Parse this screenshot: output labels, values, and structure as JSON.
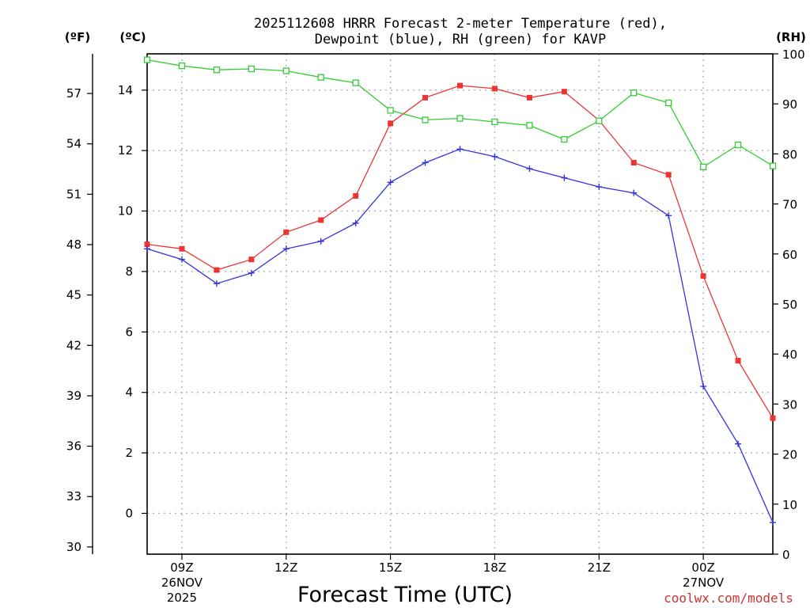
{
  "chart_data": {
    "type": "line",
    "title_line1": "2025112608 HRRR Forecast 2-meter Temperature (red),",
    "title_line2": "Dewpoint (blue), RH (green) for KAVP",
    "xlabel": "Forecast Time (UTC)",
    "credit": "coolwx.com/models",
    "units": {
      "fahrenheit": "(ºF)",
      "celsius": "(ºC)",
      "rh": "(RH)"
    },
    "x_hours": [
      8,
      9,
      10,
      11,
      12,
      13,
      14,
      15,
      16,
      17,
      18,
      19,
      20,
      21,
      22,
      23,
      24,
      25,
      26
    ],
    "xlim": [
      8,
      26
    ],
    "celsius_axis": {
      "ylim": [
        -1.35,
        15.2
      ],
      "ticks": [
        "0",
        "2",
        "4",
        "6",
        "8",
        "10",
        "12",
        "14"
      ]
    },
    "fahrenheit_axis": {
      "ticks": [
        "30",
        "33",
        "36",
        "39",
        "42",
        "45",
        "48",
        "51",
        "54",
        "57"
      ]
    },
    "rh_axis": {
      "ylim": [
        0,
        100
      ],
      "ticks": [
        "0",
        "10",
        "20",
        "30",
        "40",
        "50",
        "60",
        "70",
        "80",
        "90",
        "100"
      ]
    },
    "x_ticks": [
      {
        "label": "09Z",
        "sub1": "26NOV",
        "sub2": "2025"
      },
      {
        "label": "12Z",
        "sub1": "",
        "sub2": ""
      },
      {
        "label": "15Z",
        "sub1": "",
        "sub2": ""
      },
      {
        "label": "18Z",
        "sub1": "",
        "sub2": ""
      },
      {
        "label": "21Z",
        "sub1": "",
        "sub2": ""
      },
      {
        "label": "00Z",
        "sub1": "27NOV",
        "sub2": ""
      }
    ],
    "series": [
      {
        "name": "Temperature",
        "axis": "celsius",
        "color": "#ee3333",
        "marker": "filled-square",
        "values": [
          8.9,
          8.75,
          8.05,
          8.4,
          9.3,
          9.7,
          10.5,
          12.9,
          13.75,
          14.15,
          14.05,
          13.75,
          13.95,
          13.0,
          11.6,
          11.2,
          7.85,
          5.05,
          3.15
        ]
      },
      {
        "name": "Dewpoint",
        "axis": "celsius",
        "color": "#3333dd",
        "marker": "plus",
        "values": [
          8.75,
          8.4,
          7.6,
          7.95,
          8.75,
          9.0,
          9.6,
          10.95,
          11.6,
          12.05,
          11.8,
          11.4,
          11.1,
          10.8,
          10.6,
          9.85,
          4.2,
          2.3,
          -0.3
        ]
      },
      {
        "name": "RH",
        "axis": "rh",
        "color": "#33cc33",
        "marker": "open-square",
        "values": [
          98.8,
          97.6,
          96.8,
          97.0,
          96.6,
          95.3,
          94.2,
          88.7,
          86.8,
          87.1,
          86.4,
          85.7,
          82.9,
          86.6,
          92.2,
          90.2,
          77.4,
          81.8,
          77.6
        ]
      }
    ]
  }
}
